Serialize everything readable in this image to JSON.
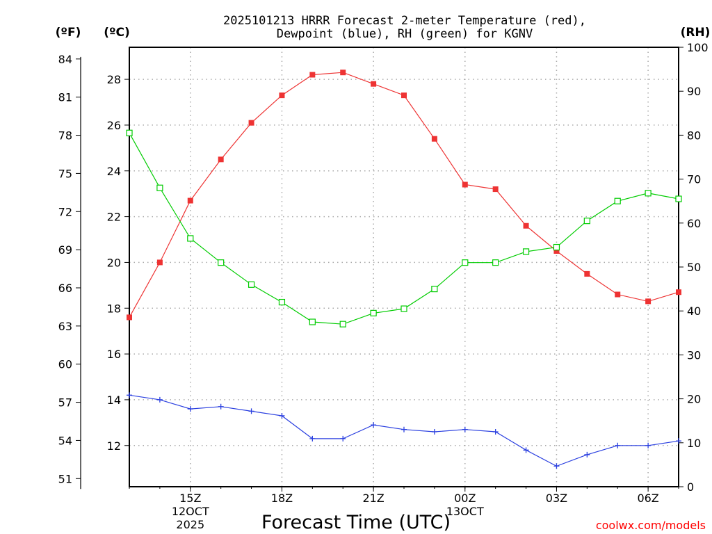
{
  "chart_data": {
    "type": "line",
    "title_lines": [
      "2025101213 HRRR Forecast 2-meter Temperature (red),",
      "Dewpoint (blue), RH (green) for KGNV"
    ],
    "xlabel": "Forecast Time (UTC)",
    "credit": "coolwx.com/models",
    "units": {
      "fahrenheit": "(ºF)",
      "celsius": "(ºC)",
      "rh": "(RH)"
    },
    "x_hours": [
      13,
      14,
      15,
      16,
      17,
      18,
      19,
      20,
      21,
      22,
      23,
      24,
      25,
      26,
      27,
      28,
      29,
      30,
      31
    ],
    "xlim": [
      13,
      31
    ],
    "x_ticks": [
      {
        "x": 15,
        "label": "15Z",
        "sub": [
          "12OCT",
          "2025"
        ]
      },
      {
        "x": 18,
        "label": "18Z",
        "sub": []
      },
      {
        "x": 21,
        "label": "21Z",
        "sub": []
      },
      {
        "x": 24,
        "label": "00Z",
        "sub": [
          "13OCT"
        ]
      },
      {
        "x": 27,
        "label": "03Z",
        "sub": []
      },
      {
        "x": 30,
        "label": "06Z",
        "sub": []
      }
    ],
    "celsius_axis": {
      "range": [
        10.2,
        29.4
      ],
      "ticks": [
        "12",
        "14",
        "16",
        "18",
        "20",
        "22",
        "24",
        "26",
        "28"
      ]
    },
    "fahrenheit_axis": {
      "ticks": [
        "51",
        "54",
        "57",
        "60",
        "63",
        "66",
        "69",
        "72",
        "75",
        "78",
        "81",
        "84"
      ]
    },
    "rh_axis": {
      "range": [
        0,
        100
      ],
      "ticks": [
        "0",
        "10",
        "20",
        "30",
        "40",
        "50",
        "60",
        "70",
        "80",
        "90",
        "100"
      ]
    },
    "series": [
      {
        "name": "2-meter Temperature",
        "axis": "celsius",
        "color": "#ee3333",
        "marker": "filled-square",
        "values": [
          17.6,
          20.0,
          22.7,
          24.5,
          26.1,
          27.3,
          28.2,
          28.3,
          27.8,
          27.3,
          25.4,
          23.4,
          23.2,
          21.6,
          20.5,
          19.5,
          18.6,
          18.3,
          18.7
        ]
      },
      {
        "name": "Dewpoint",
        "axis": "celsius",
        "color": "#2a3fe0",
        "marker": "plus",
        "values": [
          14.2,
          14.0,
          13.6,
          13.7,
          13.5,
          13.3,
          12.3,
          12.3,
          12.9,
          12.7,
          12.6,
          12.7,
          12.6,
          11.8,
          11.1,
          11.6,
          12.0,
          12.0,
          12.2
        ]
      },
      {
        "name": "RH",
        "axis": "rh",
        "color": "#00cc00",
        "marker": "open-square",
        "values": [
          80.5,
          68.0,
          56.5,
          51.0,
          46.0,
          42.0,
          37.5,
          37.0,
          39.5,
          40.5,
          45.0,
          51.0,
          51.0,
          53.5,
          54.5,
          60.5,
          65.0,
          66.8,
          65.5
        ]
      }
    ],
    "grid": true
  }
}
